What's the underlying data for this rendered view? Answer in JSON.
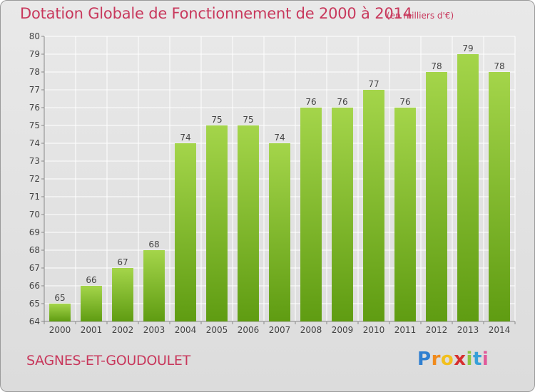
{
  "title": "Dotation Globale de Fonctionnement de 2000 à 2014",
  "subtitle": "(en milliers d'€)",
  "commune": "SAGNES-ET-GOUDOULET",
  "logo": {
    "text": "Proxiti",
    "colors": [
      "#2f7fd0",
      "#f08a1c",
      "#f2c01e",
      "#d62f2f",
      "#8cc63f",
      "#37a0d8",
      "#e05a9a"
    ]
  },
  "colors": {
    "title": "#c8385c",
    "bar_top": "#a4d54a",
    "bar_bottom": "#5f9c12",
    "grid": "#ffffff"
  },
  "chart_data": {
    "type": "bar",
    "title": "Dotation Globale de Fonctionnement de 2000 à 2014",
    "subtitle": "(en milliers d'€)",
    "xlabel": "",
    "ylabel": "",
    "categories": [
      "2000",
      "2001",
      "2002",
      "2003",
      "2004",
      "2005",
      "2006",
      "2007",
      "2008",
      "2009",
      "2010",
      "2011",
      "2012",
      "2013",
      "2014"
    ],
    "values": [
      65,
      66,
      67,
      68,
      74,
      75,
      75,
      74,
      76,
      76,
      77,
      76,
      78,
      79,
      78
    ],
    "ylim": [
      64,
      80
    ],
    "yticks": [
      64,
      65,
      66,
      67,
      68,
      69,
      70,
      71,
      72,
      73,
      74,
      75,
      76,
      77,
      78,
      79,
      80
    ],
    "grid": true,
    "data_labels": true
  }
}
